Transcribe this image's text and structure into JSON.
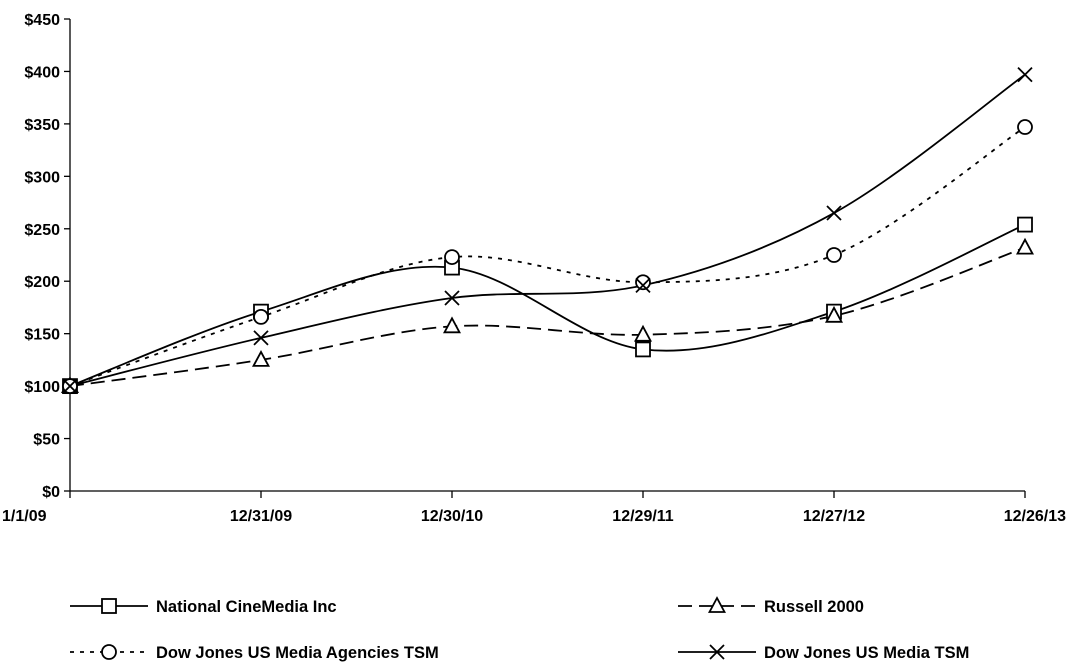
{
  "chart_data": {
    "type": "line",
    "categories": [
      "1/1/09",
      "12/31/09",
      "12/30/10",
      "12/29/11",
      "12/27/12",
      "12/26/13"
    ],
    "ylim": [
      0,
      450
    ],
    "y_ticks": [
      0,
      50,
      100,
      150,
      200,
      250,
      300,
      350,
      400,
      450
    ],
    "y_tick_labels": [
      "$0",
      "$50",
      "$100",
      "$150",
      "$200",
      "$250",
      "$300",
      "$350",
      "$400",
      "$450"
    ],
    "grid": false,
    "legend_position": "bottom",
    "series": [
      {
        "name": "National CineMedia Inc",
        "values": [
          100,
          171,
          213,
          135,
          171,
          254
        ],
        "marker": "square",
        "line_style": "solid",
        "color": "#000000"
      },
      {
        "name": "Russell 2000",
        "values": [
          100,
          125,
          157,
          149,
          167,
          232
        ],
        "marker": "triangle",
        "line_style": "dashed",
        "color": "#000000"
      },
      {
        "name": "Dow Jones US Media Agencies TSM",
        "values": [
          100,
          166,
          223,
          199,
          225,
          347
        ],
        "marker": "circle",
        "line_style": "dotted",
        "color": "#000000"
      },
      {
        "name": "Dow Jones US Media TSM",
        "values": [
          100,
          146,
          184,
          196,
          265,
          397
        ],
        "marker": "x",
        "line_style": "solid",
        "color": "#000000"
      }
    ]
  }
}
